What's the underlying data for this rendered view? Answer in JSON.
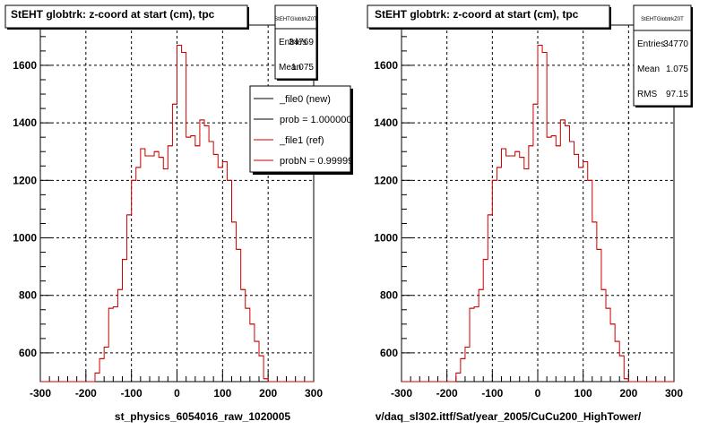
{
  "chart_data": [
    {
      "type": "line",
      "title": "StEHT globtrk: z-coord at start (cm), tpc",
      "xlabel": "st_physics_6054016_raw_1020005",
      "ylabel": "",
      "xlim": [
        -300,
        300
      ],
      "ylim": [
        500,
        1740
      ],
      "x_ticks": [
        "-300",
        "-200",
        "-100",
        "0",
        "100",
        "200",
        "300"
      ],
      "y_ticks": [
        "600",
        "800",
        "1000",
        "1200",
        "1400",
        "1600"
      ],
      "grid": true,
      "stats": {
        "name": "StEHTGlobtrkZ0T",
        "rows": [
          {
            "label": "Entries",
            "value": "34769"
          },
          {
            "label": "Mean",
            "value": "1.075"
          }
        ]
      },
      "legend": {
        "entries": [
          {
            "label": "_file0 (new)",
            "color": "#000000"
          },
          {
            "label": "prob = 1.000000",
            "color": "#000000"
          },
          {
            "label": "_file1 (ref)",
            "color": "#cc0000"
          },
          {
            "label": "probN = 0.99999",
            "color": "#cc0000"
          }
        ]
      },
      "series": [
        {
          "color": "#cc0000",
          "bin_edges": [
            -300,
            -290,
            -280,
            -270,
            -260,
            -250,
            -240,
            -230,
            -220,
            -210,
            -200,
            -190,
            -180,
            -170,
            -160,
            -150,
            -140,
            -130,
            -120,
            -110,
            -100,
            -90,
            -80,
            -70,
            -60,
            -50,
            -40,
            -30,
            -20,
            -10,
            0,
            10,
            20,
            30,
            40,
            50,
            60,
            70,
            80,
            90,
            100,
            110,
            120,
            130,
            140,
            150,
            160,
            170,
            180,
            190,
            200,
            210,
            220,
            230,
            240,
            250,
            260,
            270,
            280,
            290,
            300
          ],
          "values": [
            500,
            500,
            500,
            500,
            500,
            500,
            500,
            500,
            500,
            500,
            500,
            500,
            530,
            580,
            620,
            755,
            760,
            820,
            925,
            1080,
            1200,
            1245,
            1310,
            1285,
            1285,
            1300,
            1280,
            1240,
            1320,
            1465,
            1670,
            1645,
            1350,
            1355,
            1320,
            1410,
            1390,
            1335,
            1290,
            1245,
            1265,
            1200,
            1055,
            960,
            820,
            755,
            700,
            640,
            590,
            510,
            500,
            500,
            500,
            500,
            500,
            500,
            500,
            500,
            500,
            500
          ]
        }
      ]
    },
    {
      "type": "line",
      "title": "StEHT globtrk: z-coord at start (cm), tpc",
      "xlabel": "v/daq_sl302.ittf/Sat/year_2005/CuCu200_HighTower/",
      "ylabel": "",
      "xlim": [
        -300,
        300
      ],
      "ylim": [
        500,
        1740
      ],
      "x_ticks": [
        "-300",
        "-200",
        "-100",
        "0",
        "100",
        "200",
        "300"
      ],
      "y_ticks": [
        "600",
        "800",
        "1000",
        "1200",
        "1400",
        "1600"
      ],
      "grid": true,
      "stats": {
        "name": "StEHTGlobtrkZ0T",
        "rows": [
          {
            "label": "Entries",
            "value": "34770"
          },
          {
            "label": "Mean",
            "value": "1.075"
          },
          {
            "label": "RMS",
            "value": "97.15"
          }
        ]
      },
      "series": [
        {
          "color": "#cc0000",
          "bin_edges": [
            -300,
            -290,
            -280,
            -270,
            -260,
            -250,
            -240,
            -230,
            -220,
            -210,
            -200,
            -190,
            -180,
            -170,
            -160,
            -150,
            -140,
            -130,
            -120,
            -110,
            -100,
            -90,
            -80,
            -70,
            -60,
            -50,
            -40,
            -30,
            -20,
            -10,
            0,
            10,
            20,
            30,
            40,
            50,
            60,
            70,
            80,
            90,
            100,
            110,
            120,
            130,
            140,
            150,
            160,
            170,
            180,
            190,
            200,
            210,
            220,
            230,
            240,
            250,
            260,
            270,
            280,
            290,
            300
          ],
          "values": [
            500,
            500,
            500,
            500,
            500,
            500,
            500,
            500,
            500,
            500,
            500,
            500,
            530,
            580,
            620,
            755,
            760,
            820,
            925,
            1080,
            1200,
            1245,
            1310,
            1285,
            1285,
            1300,
            1280,
            1240,
            1320,
            1465,
            1670,
            1645,
            1350,
            1355,
            1320,
            1410,
            1390,
            1335,
            1290,
            1245,
            1265,
            1200,
            1055,
            960,
            820,
            755,
            700,
            640,
            590,
            510,
            500,
            500,
            500,
            500,
            500,
            500,
            500,
            500,
            500,
            500
          ]
        }
      ]
    }
  ]
}
